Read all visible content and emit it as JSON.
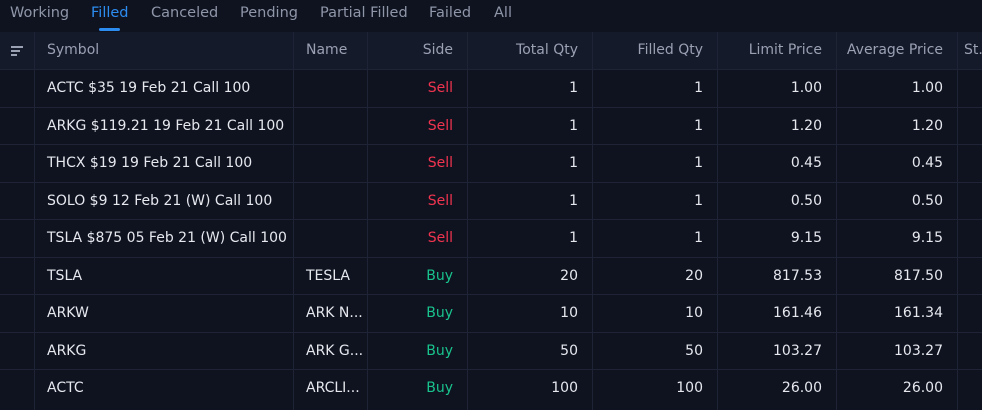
{
  "tabs": [
    "Working",
    "Filled",
    "Canceled",
    "Pending",
    "Partial Filled",
    "Failed",
    "All"
  ],
  "active_tab": "Filled",
  "columns": {
    "symbol": "Symbol",
    "name": "Name",
    "side": "Side",
    "total_qty": "Total Qty",
    "filled_qty": "Filled Qty",
    "limit_price": "Limit Price",
    "average_price": "Average Price",
    "status": "St."
  },
  "colors": {
    "sell": "#f0344f",
    "buy": "#19c38c",
    "accent": "#2d8cf0"
  },
  "rows": [
    {
      "symbol": "ACTC $35 19 Feb 21 Call 100",
      "name": "",
      "side": "Sell",
      "total_qty": "1",
      "filled_qty": "1",
      "limit_price": "1.00",
      "average_price": "1.00"
    },
    {
      "symbol": "ARKG $119.21 19 Feb 21 Call 100",
      "name": "",
      "side": "Sell",
      "total_qty": "1",
      "filled_qty": "1",
      "limit_price": "1.20",
      "average_price": "1.20"
    },
    {
      "symbol": "THCX $19 19 Feb 21 Call 100",
      "name": "",
      "side": "Sell",
      "total_qty": "1",
      "filled_qty": "1",
      "limit_price": "0.45",
      "average_price": "0.45"
    },
    {
      "symbol": "SOLO $9 12 Feb 21 (W) Call 100",
      "name": "",
      "side": "Sell",
      "total_qty": "1",
      "filled_qty": "1",
      "limit_price": "0.50",
      "average_price": "0.50"
    },
    {
      "symbol": "TSLA $875 05 Feb 21 (W) Call 100",
      "name": "",
      "side": "Sell",
      "total_qty": "1",
      "filled_qty": "1",
      "limit_price": "9.15",
      "average_price": "9.15"
    },
    {
      "symbol": "TSLA",
      "name": "TESLA",
      "side": "Buy",
      "total_qty": "20",
      "filled_qty": "20",
      "limit_price": "817.53",
      "average_price": "817.50"
    },
    {
      "symbol": "ARKW",
      "name": "ARK N...",
      "side": "Buy",
      "total_qty": "10",
      "filled_qty": "10",
      "limit_price": "161.46",
      "average_price": "161.34"
    },
    {
      "symbol": "ARKG",
      "name": "ARK G...",
      "side": "Buy",
      "total_qty": "50",
      "filled_qty": "50",
      "limit_price": "103.27",
      "average_price": "103.27"
    },
    {
      "symbol": "ACTC",
      "name": "ARCLI...",
      "side": "Buy",
      "total_qty": "100",
      "filled_qty": "100",
      "limit_price": "26.00",
      "average_price": "26.00"
    }
  ]
}
